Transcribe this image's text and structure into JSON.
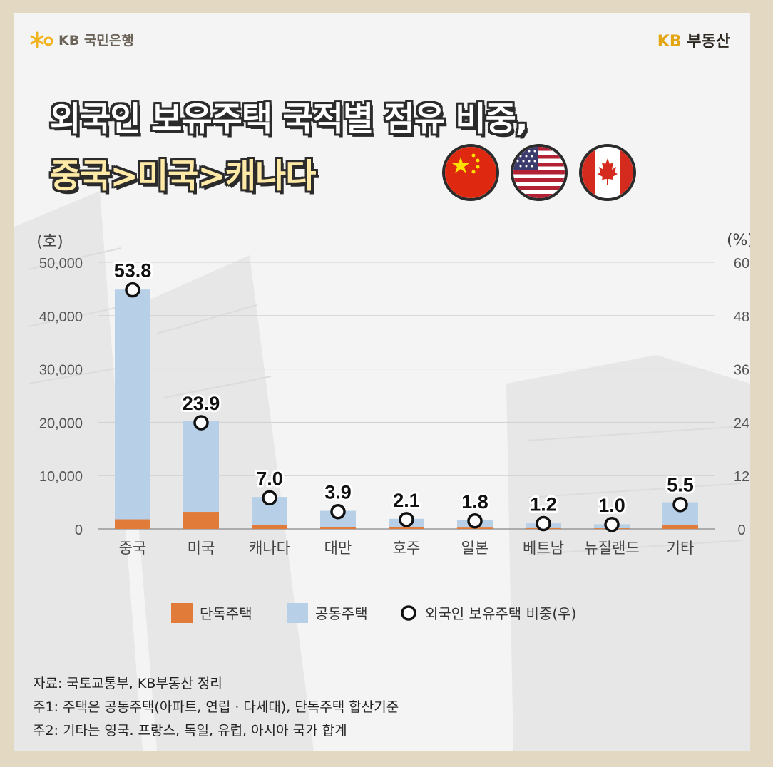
{
  "header": {
    "bank_logo_text": "KB 국민은행",
    "estate_logo_kb": "KB",
    "estate_logo_text": "부동산"
  },
  "title": {
    "line1": "외국인 보유주택 국적별 점유 비중,",
    "line2": "중국>미국>캐나다"
  },
  "flags": [
    "china-flag-icon",
    "usa-flag-icon",
    "canada-flag-icon"
  ],
  "colors": {
    "detached": "#e07b3a",
    "apartment": "#b7d0e8",
    "marker_fill": "#ffffff",
    "marker_stroke": "#111111"
  },
  "chart_data": {
    "type": "bar",
    "stacked": true,
    "categories": [
      "중국",
      "미국",
      "캐나다",
      "대만",
      "호주",
      "일본",
      "베트남",
      "뉴질랜드",
      "기타"
    ],
    "series": [
      {
        "name": "단독주택",
        "axis": "left",
        "values": [
          1800,
          3200,
          700,
          400,
          300,
          250,
          150,
          120,
          700
        ]
      },
      {
        "name": "공동주택",
        "axis": "left",
        "values": [
          43100,
          17000,
          5300,
          3000,
          1600,
          1400,
          900,
          750,
          4300
        ]
      },
      {
        "name": "외국인 보유주택 비중(우)",
        "axis": "right",
        "type": "scatter",
        "values": [
          53.8,
          23.9,
          7.0,
          3.9,
          2.1,
          1.8,
          1.2,
          1.0,
          5.5
        ]
      }
    ],
    "left_axis": {
      "unit": "(호)",
      "ylim": [
        0,
        50000
      ],
      "ticks": [
        "0",
        "10,000",
        "20,000",
        "30,000",
        "40,000",
        "50,000"
      ]
    },
    "right_axis": {
      "unit": "(%)",
      "ylim": [
        0,
        60
      ],
      "ticks": [
        "0",
        "12",
        "24",
        "36",
        "48",
        "60"
      ]
    },
    "data_labels": [
      "53.8",
      "23.9",
      "7.0",
      "3.9",
      "2.1",
      "1.8",
      "1.2",
      "1.0",
      "5.5"
    ],
    "grid": true,
    "legend": "bottom"
  },
  "legend": {
    "detached": "단독주택",
    "apartment": "공동주택",
    "share": "외국인 보유주택 비중(우)"
  },
  "notes": [
    "자료: 국토교통부, KB부동산 정리",
    "주1: 주택은 공동주택(아파트, 연립 · 다세대), 단독주택 합산기준",
    "주2: 기타는 영국. 프랑스, 독일, 유럽, 아시아 국가 합계"
  ]
}
